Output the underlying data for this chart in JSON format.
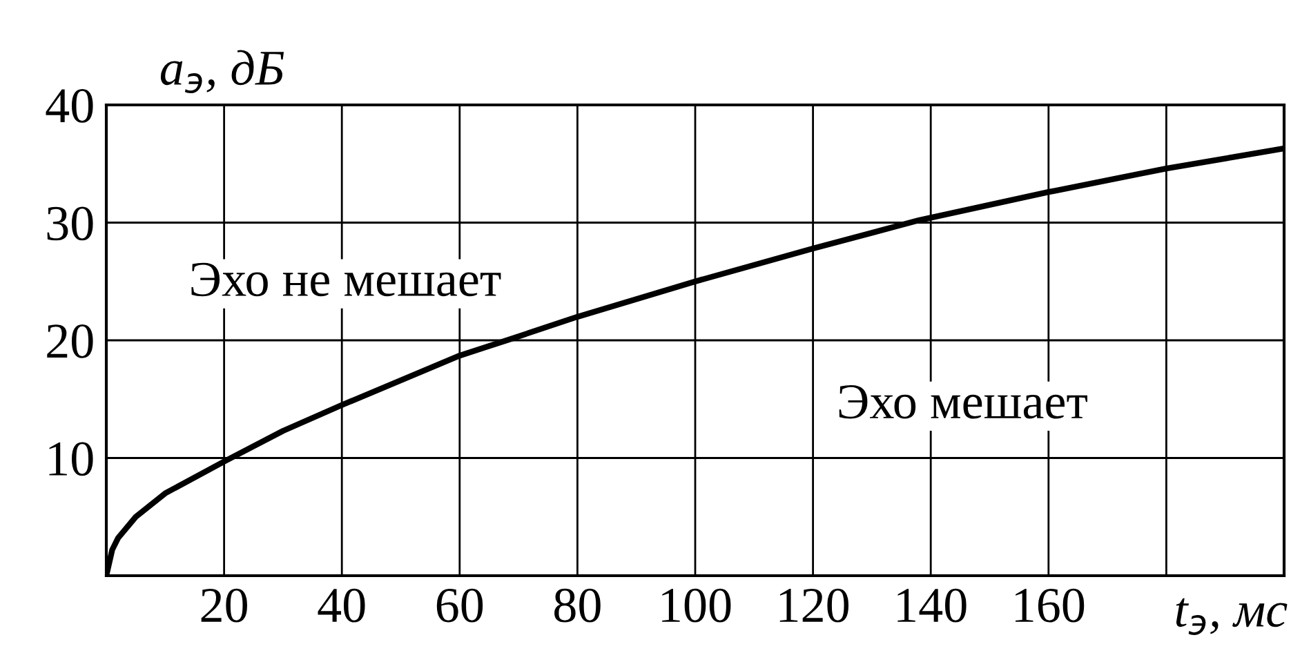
{
  "chart_data": {
    "type": "line",
    "xlabel": "t$_{э}$, мс",
    "ylabel": "a$_{э}$, дБ",
    "x": [
      0,
      1,
      2,
      5,
      10,
      20,
      30,
      40,
      60,
      68,
      80,
      100,
      120,
      138,
      160,
      180,
      200
    ],
    "series": [
      {
        "color": "#000000",
        "values": [
          0,
          2.2,
          3.2,
          5,
          7,
          9.7,
          12.3,
          14.5,
          18.7,
          20,
          22,
          25,
          27.8,
          30.2,
          32.6,
          34.6,
          36.3
        ]
      }
    ],
    "xlim": [
      0,
      200
    ],
    "ylim": [
      0,
      40
    ],
    "xticks": [
      20,
      40,
      60,
      80,
      100,
      120,
      140,
      160,
      {
        "value": 180,
        "label": null
      },
      {
        "value": 200,
        "label": null
      }
    ],
    "yticks": [
      10,
      20,
      30,
      40
    ],
    "grid": true,
    "marker": "none",
    "line_style": "solid",
    "annotations": [
      "Эхо не мешает",
      "Эхо мешает"
    ]
  }
}
